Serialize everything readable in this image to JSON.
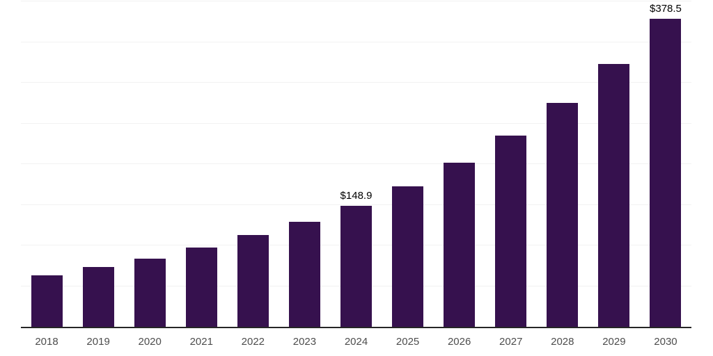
{
  "chart_data": {
    "type": "bar",
    "title": "",
    "xlabel": "",
    "ylabel": "",
    "categories": [
      "2018",
      "2019",
      "2020",
      "2021",
      "2022",
      "2023",
      "2024",
      "2025",
      "2026",
      "2027",
      "2028",
      "2029",
      "2030"
    ],
    "values": [
      63,
      73.5,
      84,
      97.5,
      112.5,
      129.5,
      148.9,
      173,
      201.5,
      235,
      275.5,
      323.5,
      378.5
    ],
    "data_labels": [
      "",
      "",
      "",
      "",
      "",
      "",
      "$148.9",
      "",
      "",
      "",
      "",
      "",
      "$378.5"
    ],
    "ylim": [
      0,
      400
    ],
    "gridline_step": 50,
    "grid": "horizontal",
    "legend_position": "none",
    "y_axis_labels_visible": false,
    "colors": {
      "bar": "#36114e",
      "axis_line": "#262626",
      "gridline": "#f2f2f2",
      "tick_label": "#4d4d4d",
      "data_label": "#000000",
      "background": "#ffffff"
    }
  }
}
